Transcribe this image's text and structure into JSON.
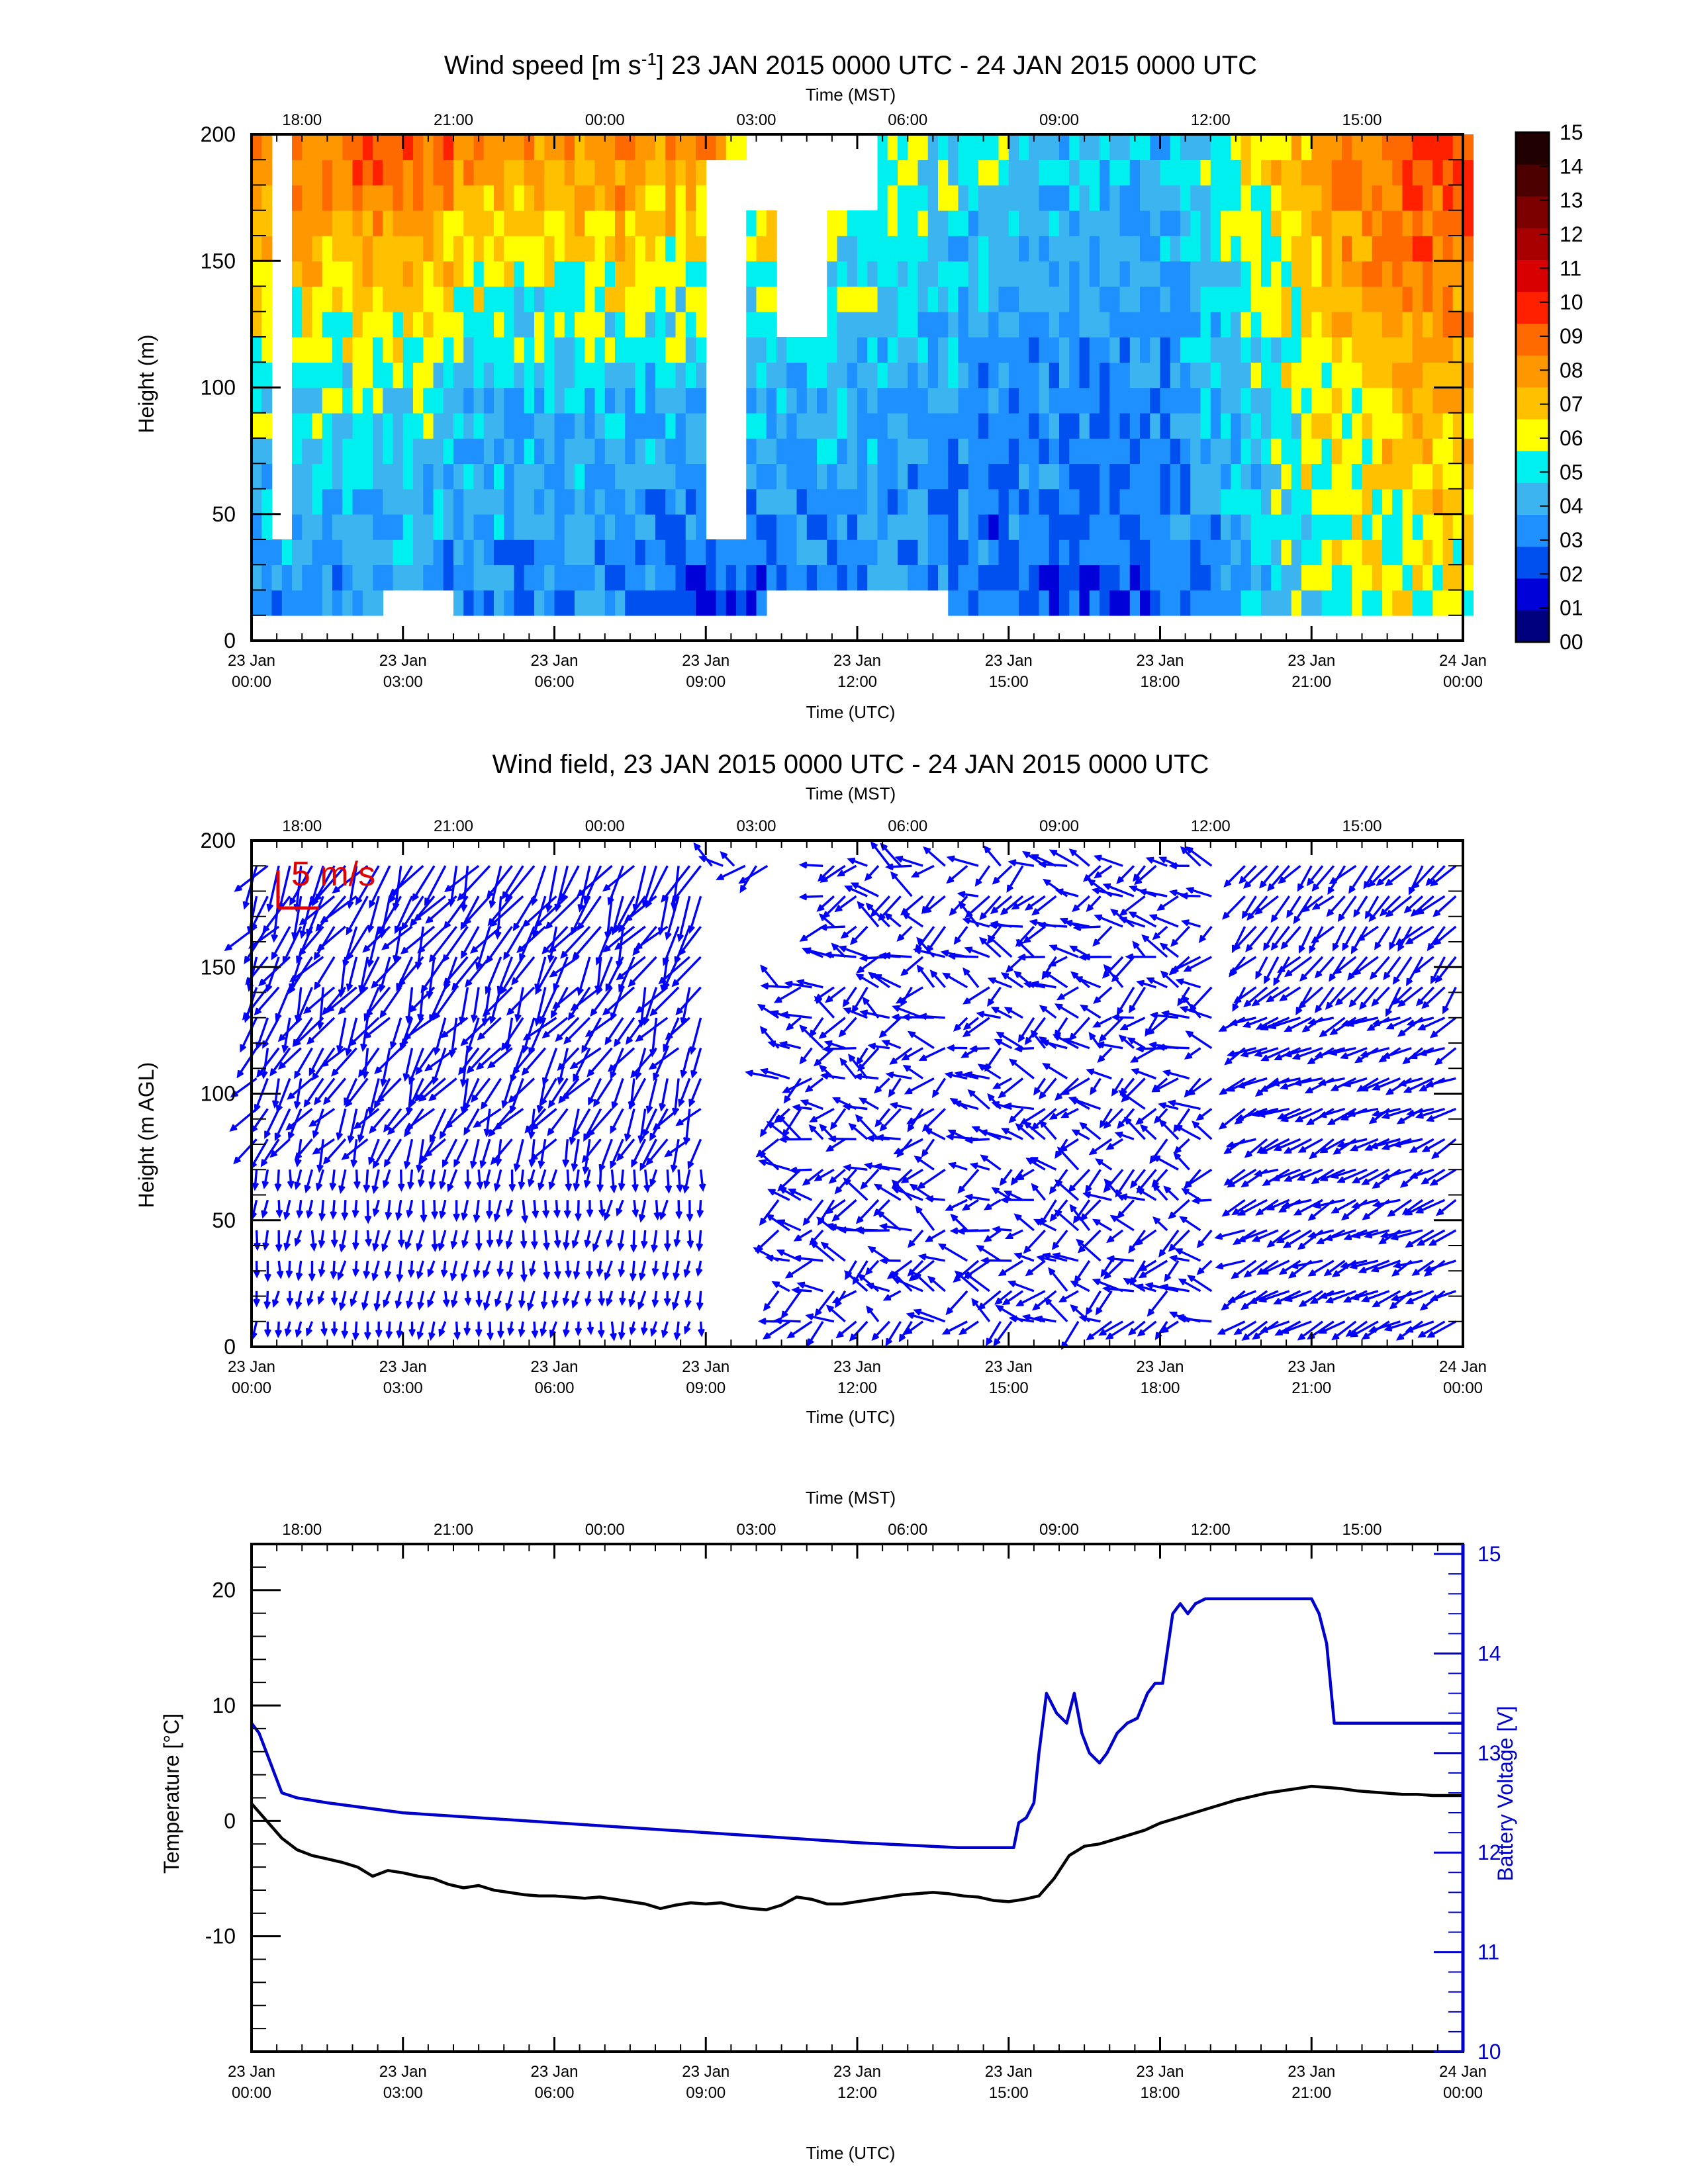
{
  "chart_data": [
    {
      "type": "heatmap",
      "title": "Wind speed [m s",
      "title_sup": "-1",
      "title_rest": "] 23 JAN 2015 0000 UTC - 24 JAN 2015 0000 UTC",
      "top_axis_label": "Time (MST)",
      "top_ticks": [
        "18:00",
        "21:00",
        "00:00",
        "03:00",
        "06:00",
        "09:00",
        "12:00",
        "15:00"
      ],
      "xlabel": "Time (UTC)",
      "x_ticks_line1": [
        "23 Jan",
        "23 Jan",
        "23 Jan",
        "23 Jan",
        "23 Jan",
        "23 Jan",
        "23 Jan",
        "23 Jan",
        "24 Jan"
      ],
      "x_ticks_line2": [
        "00:00",
        "03:00",
        "06:00",
        "09:00",
        "12:00",
        "15:00",
        "18:00",
        "21:00",
        "00:00"
      ],
      "xlim": [
        0,
        24
      ],
      "ylabel": "Height (m)",
      "y_ticks": [
        0,
        50,
        100,
        150,
        200
      ],
      "ylim": [
        0,
        200
      ],
      "colorbar_ticks": [
        "00",
        "01",
        "02",
        "03",
        "04",
        "05",
        "06",
        "07",
        "08",
        "09",
        "10",
        "11",
        "12",
        "13",
        "14",
        "15"
      ],
      "colorbar_colors": [
        "#00007f",
        "#0000d8",
        "#0050f0",
        "#1e90ff",
        "#3cb4f0",
        "#00f0f0",
        "#ffff00",
        "#ffc000",
        "#ff9800",
        "#ff6a00",
        "#ff2000",
        "#d80000",
        "#a80000",
        "#7c0000",
        "#4c0000",
        "#200000"
      ],
      "wind_speed_by_hour_m_s": [
        {
          "hour": 1,
          "low": 3,
          "mid": 5,
          "high": 9
        },
        {
          "hour": 3,
          "low": 3,
          "mid": 5,
          "high": 10
        },
        {
          "hour": 5,
          "low": 3,
          "mid": 4,
          "high": 8
        },
        {
          "hour": 7,
          "low": 3,
          "mid": 4,
          "high": 9
        },
        {
          "hour": 9,
          "low": 1,
          "mid": 4,
          "high": 8
        },
        {
          "hour": 12,
          "low": 3,
          "mid": 4,
          "high": 6
        },
        {
          "hour": 15,
          "low": 2,
          "mid": 3,
          "high": 5
        },
        {
          "hour": 18,
          "low": 2,
          "mid": 3,
          "high": 4
        },
        {
          "hour": 21,
          "low": 5,
          "mid": 6,
          "high": 8
        },
        {
          "hour": 23,
          "low": 6,
          "mid": 7,
          "high": 10
        }
      ]
    },
    {
      "type": "vector",
      "title": "Wind field, 23 JAN 2015 0000 UTC - 24 JAN 2015 0000 UTC",
      "top_axis_label": "Time (MST)",
      "top_ticks": [
        "18:00",
        "21:00",
        "00:00",
        "03:00",
        "06:00",
        "09:00",
        "12:00",
        "15:00"
      ],
      "xlabel": "Time (UTC)",
      "x_ticks_line1": [
        "23 Jan",
        "23 Jan",
        "23 Jan",
        "23 Jan",
        "23 Jan",
        "23 Jan",
        "23 Jan",
        "23 Jan",
        "24 Jan"
      ],
      "x_ticks_line2": [
        "00:00",
        "03:00",
        "06:00",
        "09:00",
        "12:00",
        "15:00",
        "18:00",
        "21:00",
        "00:00"
      ],
      "xlim": [
        0,
        24
      ],
      "ylabel": "Height (m AGL)",
      "y_ticks": [
        0,
        50,
        100,
        150,
        200
      ],
      "ylim": [
        0,
        200
      ],
      "reference_vector_label": "5 m/s",
      "reference_vector_color": "#e00000",
      "vector_color": "#0000ff"
    },
    {
      "type": "line",
      "top_axis_label": "Time (MST)",
      "top_ticks": [
        "18:00",
        "21:00",
        "00:00",
        "03:00",
        "06:00",
        "09:00",
        "12:00",
        "15:00"
      ],
      "xlabel": "Time (UTC)",
      "x_ticks_line1": [
        "23 Jan",
        "23 Jan",
        "23 Jan",
        "23 Jan",
        "23 Jan",
        "23 Jan",
        "23 Jan",
        "23 Jan",
        "24 Jan"
      ],
      "x_ticks_line2": [
        "00:00",
        "03:00",
        "06:00",
        "09:00",
        "12:00",
        "15:00",
        "18:00",
        "21:00",
        "00:00"
      ],
      "xlim": [
        0,
        24
      ],
      "ylabel_left": "Temperature [°C]",
      "y_left_ticks": [
        20,
        10,
        0,
        -10
      ],
      "ylim_left": [
        -20,
        24
      ],
      "ylabel_right": "Battery Voltage [V]",
      "y_right_ticks": [
        15,
        14,
        13,
        12,
        11,
        10
      ],
      "ylim_right": [
        10,
        15.1
      ],
      "right_axis_color": "#0000cc",
      "series": [
        {
          "axis": "left",
          "color": "#000000",
          "x": [
            0,
            0.3,
            0.6,
            0.9,
            1.2,
            1.4,
            1.8,
            2.1,
            2.4,
            2.7,
            3,
            3.3,
            3.6,
            3.9,
            4.2,
            4.5,
            4.8,
            5.1,
            5.4,
            5.7,
            6,
            6.3,
            6.6,
            6.9,
            7.2,
            7.5,
            7.8,
            8.1,
            8.4,
            8.7,
            9,
            9.3,
            9.6,
            9.9,
            10.2,
            10.5,
            10.8,
            11.1,
            11.4,
            11.7,
            12,
            12.3,
            12.6,
            12.9,
            13.2,
            13.5,
            13.8,
            14.1,
            14.4,
            14.7,
            15,
            15.3,
            15.6,
            15.9,
            16.2,
            16.5,
            16.8,
            17.1,
            17.4,
            17.7,
            18,
            18.3,
            18.6,
            18.9,
            19.2,
            19.5,
            19.8,
            20.1,
            20.4,
            20.7,
            21,
            21.3,
            21.6,
            21.9,
            22.2,
            22.5,
            22.8,
            23.1,
            23.4,
            23.7,
            24
          ],
          "values": [
            1.5,
            0,
            -1.5,
            -2.5,
            -3,
            -3.2,
            -3.6,
            -4,
            -4.8,
            -4.3,
            -4.5,
            -4.8,
            -5,
            -5.5,
            -5.8,
            -5.6,
            -6,
            -6.2,
            -6.4,
            -6.5,
            -6.5,
            -6.6,
            -6.7,
            -6.6,
            -6.8,
            -7,
            -7.2,
            -7.6,
            -7.3,
            -7.1,
            -7.2,
            -7.1,
            -7.4,
            -7.6,
            -7.7,
            -7.3,
            -6.6,
            -6.8,
            -7.2,
            -7.2,
            -7,
            -6.8,
            -6.6,
            -6.4,
            -6.3,
            -6.2,
            -6.3,
            -6.5,
            -6.6,
            -6.9,
            -7,
            -6.8,
            -6.5,
            -5,
            -3,
            -2.2,
            -2,
            -1.6,
            -1.2,
            -0.8,
            -0.2,
            0.2,
            0.6,
            1,
            1.4,
            1.8,
            2.1,
            2.4,
            2.6,
            2.8,
            3,
            2.9,
            2.8,
            2.6,
            2.5,
            2.4,
            2.3,
            2.3,
            2.2,
            2.2,
            2.2
          ]
        },
        {
          "axis": "right",
          "color": "#0000cc",
          "x": [
            0,
            0.15,
            0.3,
            0.45,
            0.6,
            0.9,
            1.5,
            3,
            6,
            9,
            12,
            14,
            15.1,
            15.2,
            15.35,
            15.5,
            15.6,
            15.75,
            15.95,
            16.15,
            16.3,
            16.45,
            16.6,
            16.8,
            16.95,
            17.15,
            17.35,
            17.55,
            17.75,
            17.9,
            18.05,
            18.25,
            18.4,
            18.55,
            18.7,
            18.9,
            19.2,
            19.5,
            21,
            21.15,
            21.3,
            21.45,
            21.6,
            22,
            24
          ],
          "values": [
            13.3,
            13.2,
            13,
            12.8,
            12.6,
            12.55,
            12.5,
            12.4,
            12.3,
            12.2,
            12.1,
            12.05,
            12.05,
            12.3,
            12.35,
            12.5,
            13,
            13.6,
            13.4,
            13.3,
            13.6,
            13.2,
            13.0,
            12.9,
            13.0,
            13.2,
            13.3,
            13.35,
            13.6,
            13.7,
            13.7,
            14.4,
            14.5,
            14.4,
            14.5,
            14.55,
            14.55,
            14.55,
            14.55,
            14.4,
            14.1,
            13.3,
            13.3,
            13.3,
            13.3
          ]
        }
      ]
    }
  ]
}
